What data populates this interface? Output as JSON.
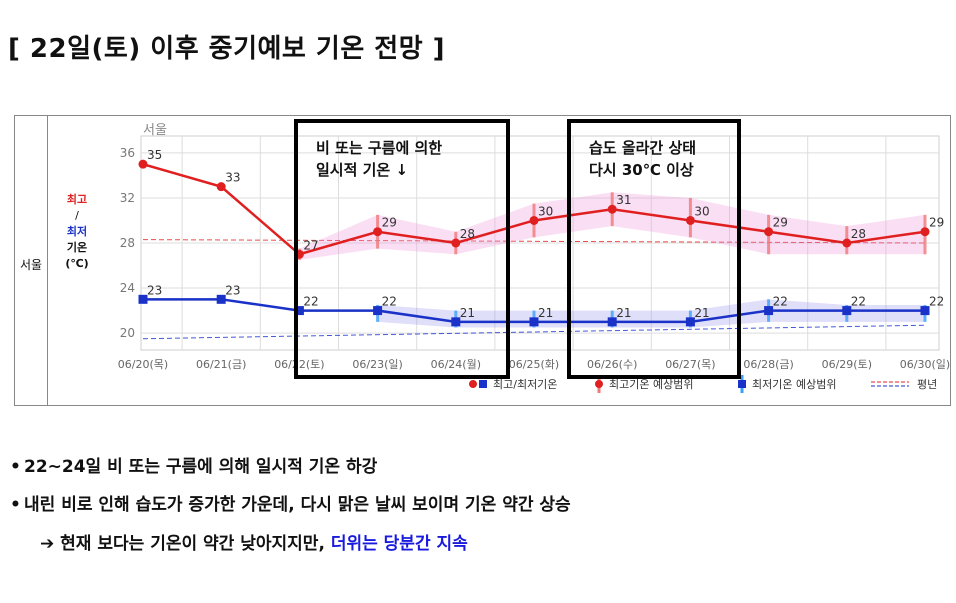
{
  "title": "[ 22일(토) 이후 중기예보 기온 전망 ]",
  "region_label": "서울",
  "chart_data": {
    "type": "line",
    "title": "서울",
    "ylabel_parts": {
      "high": "최고",
      "slash": "/",
      "low": "최저",
      "name": "기온",
      "unit": "(℃)"
    },
    "categories": [
      "06/20(목)",
      "06/21(금)",
      "06/22(토)",
      "06/23(일)",
      "06/24(월)",
      "06/25(화)",
      "06/26(수)",
      "06/27(목)",
      "06/28(금)",
      "06/29(토)",
      "06/30(일)"
    ],
    "yticks": [
      20,
      24,
      28,
      32,
      36
    ],
    "ylim": [
      18.5,
      37.5
    ],
    "grid": true,
    "series": [
      {
        "name": "최고기온",
        "color": "#e02020",
        "marker": "circle",
        "values": [
          35,
          33,
          27,
          29,
          28,
          30,
          31,
          30,
          29,
          28,
          29
        ],
        "range_low": [
          null,
          null,
          26.5,
          27.5,
          27,
          28.5,
          29.5,
          28.5,
          27,
          27,
          27
        ],
        "range_high": [
          null,
          null,
          27.5,
          30.5,
          29,
          31.5,
          32.5,
          32,
          30.5,
          29.5,
          30.5
        ]
      },
      {
        "name": "최저기온",
        "color": "#1a32c8",
        "marker": "square",
        "values": [
          23,
          23,
          22,
          22,
          21,
          21,
          21,
          21,
          22,
          22,
          22
        ],
        "range_low": [
          null,
          null,
          null,
          21,
          20.5,
          20.5,
          20.5,
          20.5,
          21,
          21,
          21
        ],
        "range_high": [
          null,
          null,
          null,
          22.5,
          22,
          22,
          22,
          22,
          23,
          22.5,
          22.5
        ]
      },
      {
        "name": "평년 최고",
        "color": "#e02020",
        "dashed": true,
        "start": 28.3,
        "end": 28.0
      },
      {
        "name": "평년 최저",
        "color": "#1a32c8",
        "dashed": true,
        "start": 19.5,
        "end": 20.7
      }
    ],
    "legend": {
      "position": "bottom",
      "items": [
        "최고/최저기온",
        "최고기온 예상범위",
        "최저기온 예상범위",
        "평년"
      ]
    }
  },
  "callouts": [
    {
      "text": "비 또는 구름에 의한\n일시적 기온 ↓"
    },
    {
      "text": "습도 올라간 상태\n다시 30℃ 이상"
    }
  ],
  "bullets": {
    "b1": "22~24일 비 또는 구름에 의해 일시적 기온 하강",
    "b2": "내린 비로 인해 습도가 증가한 가운데, 다시 맑은 날씨 보이며 기온 약간 상승",
    "b3_arrow": "➔",
    "b3_main": "현재 보다는 기온이 약간 낮아지지만, ",
    "b3_highlight": "더위는 당분간 지속"
  }
}
